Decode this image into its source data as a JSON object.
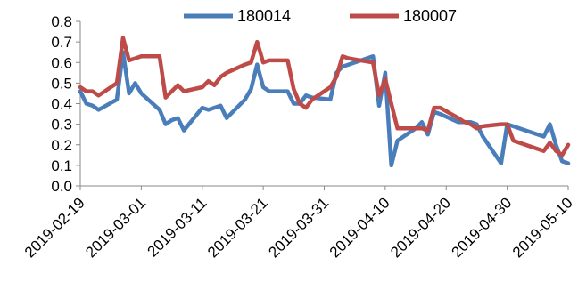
{
  "chart_data": {
    "type": "line",
    "title": "",
    "xlabel": "",
    "ylabel": "",
    "ylim": [
      0,
      0.8
    ],
    "y_ticks": [
      "0.0",
      "0.1",
      "0.2",
      "0.3",
      "0.4",
      "0.5",
      "0.6",
      "0.7",
      "0.8"
    ],
    "x_ticks": [
      "2019-02-19",
      "2019-03-01",
      "2019-03-11",
      "2019-03-21",
      "2019-03-31",
      "2019-04-10",
      "2019-04-20",
      "2019-04-30",
      "2019-05-10"
    ],
    "x_range": [
      "2019-02-19",
      "2019-05-10"
    ],
    "grid": false,
    "legend": "top",
    "series": [
      {
        "name": "180014",
        "color": "#4a7ebb",
        "points": [
          [
            "2019-02-19",
            0.46
          ],
          [
            "2019-02-20",
            0.4
          ],
          [
            "2019-02-21",
            0.39
          ],
          [
            "2019-02-22",
            0.37
          ],
          [
            "2019-02-25",
            0.42
          ],
          [
            "2019-02-26",
            0.65
          ],
          [
            "2019-02-27",
            0.45
          ],
          [
            "2019-02-28",
            0.5
          ],
          [
            "2019-03-01",
            0.45
          ],
          [
            "2019-03-04",
            0.37
          ],
          [
            "2019-03-05",
            0.3
          ],
          [
            "2019-03-06",
            0.32
          ],
          [
            "2019-03-07",
            0.33
          ],
          [
            "2019-03-08",
            0.27
          ],
          [
            "2019-03-11",
            0.38
          ],
          [
            "2019-03-12",
            0.37
          ],
          [
            "2019-03-13",
            0.38
          ],
          [
            "2019-03-14",
            0.39
          ],
          [
            "2019-03-15",
            0.33
          ],
          [
            "2019-03-18",
            0.42
          ],
          [
            "2019-03-19",
            0.47
          ],
          [
            "2019-03-20",
            0.59
          ],
          [
            "2019-03-21",
            0.48
          ],
          [
            "2019-03-22",
            0.46
          ],
          [
            "2019-03-25",
            0.46
          ],
          [
            "2019-03-26",
            0.4
          ],
          [
            "2019-03-27",
            0.4
          ],
          [
            "2019-03-28",
            0.44
          ],
          [
            "2019-03-29",
            0.43
          ],
          [
            "2019-04-01",
            0.42
          ],
          [
            "2019-04-02",
            0.55
          ],
          [
            "2019-04-03",
            0.58
          ],
          [
            "2019-04-04",
            0.59
          ],
          [
            "2019-04-08",
            0.63
          ],
          [
            "2019-04-09",
            0.39
          ],
          [
            "2019-04-10",
            0.55
          ],
          [
            "2019-04-11",
            0.1
          ],
          [
            "2019-04-12",
            0.22
          ],
          [
            "2019-04-15",
            0.28
          ],
          [
            "2019-04-16",
            0.31
          ],
          [
            "2019-04-17",
            0.25
          ],
          [
            "2019-04-18",
            0.36
          ],
          [
            "2019-04-19",
            0.35
          ],
          [
            "2019-04-22",
            0.31
          ],
          [
            "2019-04-23",
            0.31
          ],
          [
            "2019-04-24",
            0.31
          ],
          [
            "2019-04-25",
            0.3
          ],
          [
            "2019-04-26",
            0.24
          ],
          [
            "2019-04-29",
            0.11
          ],
          [
            "2019-04-30",
            0.3
          ],
          [
            "2019-05-06",
            0.24
          ],
          [
            "2019-05-07",
            0.3
          ],
          [
            "2019-05-08",
            0.2
          ],
          [
            "2019-05-09",
            0.12
          ],
          [
            "2019-05-10",
            0.11
          ]
        ]
      },
      {
        "name": "180007",
        "color": "#be4b48",
        "points": [
          [
            "2019-02-19",
            0.48
          ],
          [
            "2019-02-20",
            0.46
          ],
          [
            "2019-02-21",
            0.46
          ],
          [
            "2019-02-22",
            0.44
          ],
          [
            "2019-02-25",
            0.5
          ],
          [
            "2019-02-26",
            0.72
          ],
          [
            "2019-02-27",
            0.61
          ],
          [
            "2019-02-28",
            0.62
          ],
          [
            "2019-03-01",
            0.63
          ],
          [
            "2019-03-04",
            0.63
          ],
          [
            "2019-03-05",
            0.43
          ],
          [
            "2019-03-06",
            0.46
          ],
          [
            "2019-03-07",
            0.49
          ],
          [
            "2019-03-08",
            0.46
          ],
          [
            "2019-03-11",
            0.48
          ],
          [
            "2019-03-12",
            0.51
          ],
          [
            "2019-03-13",
            0.49
          ],
          [
            "2019-03-14",
            0.53
          ],
          [
            "2019-03-15",
            0.55
          ],
          [
            "2019-03-18",
            0.59
          ],
          [
            "2019-03-19",
            0.6
          ],
          [
            "2019-03-20",
            0.7
          ],
          [
            "2019-03-21",
            0.6
          ],
          [
            "2019-03-22",
            0.61
          ],
          [
            "2019-03-25",
            0.61
          ],
          [
            "2019-03-26",
            0.47
          ],
          [
            "2019-03-27",
            0.4
          ],
          [
            "2019-03-28",
            0.38
          ],
          [
            "2019-03-29",
            0.42
          ],
          [
            "2019-04-01",
            0.48
          ],
          [
            "2019-04-02",
            0.53
          ],
          [
            "2019-04-03",
            0.63
          ],
          [
            "2019-04-04",
            0.62
          ],
          [
            "2019-04-08",
            0.6
          ],
          [
            "2019-04-09",
            0.44
          ],
          [
            "2019-04-10",
            0.52
          ],
          [
            "2019-04-11",
            0.4
          ],
          [
            "2019-04-12",
            0.28
          ],
          [
            "2019-04-15",
            0.28
          ],
          [
            "2019-04-16",
            0.28
          ],
          [
            "2019-04-17",
            0.27
          ],
          [
            "2019-04-18",
            0.38
          ],
          [
            "2019-04-19",
            0.38
          ],
          [
            "2019-04-22",
            0.33
          ],
          [
            "2019-04-23",
            0.31
          ],
          [
            "2019-04-24",
            0.3
          ],
          [
            "2019-04-25",
            0.28
          ],
          [
            "2019-04-26",
            0.29
          ],
          [
            "2019-04-29",
            0.3
          ],
          [
            "2019-04-30",
            0.3
          ],
          [
            "2019-05-01",
            0.22
          ],
          [
            "2019-05-06",
            0.17
          ],
          [
            "2019-05-07",
            0.21
          ],
          [
            "2019-05-08",
            0.17
          ],
          [
            "2019-05-09",
            0.15
          ],
          [
            "2019-05-10",
            0.2
          ]
        ]
      }
    ]
  }
}
